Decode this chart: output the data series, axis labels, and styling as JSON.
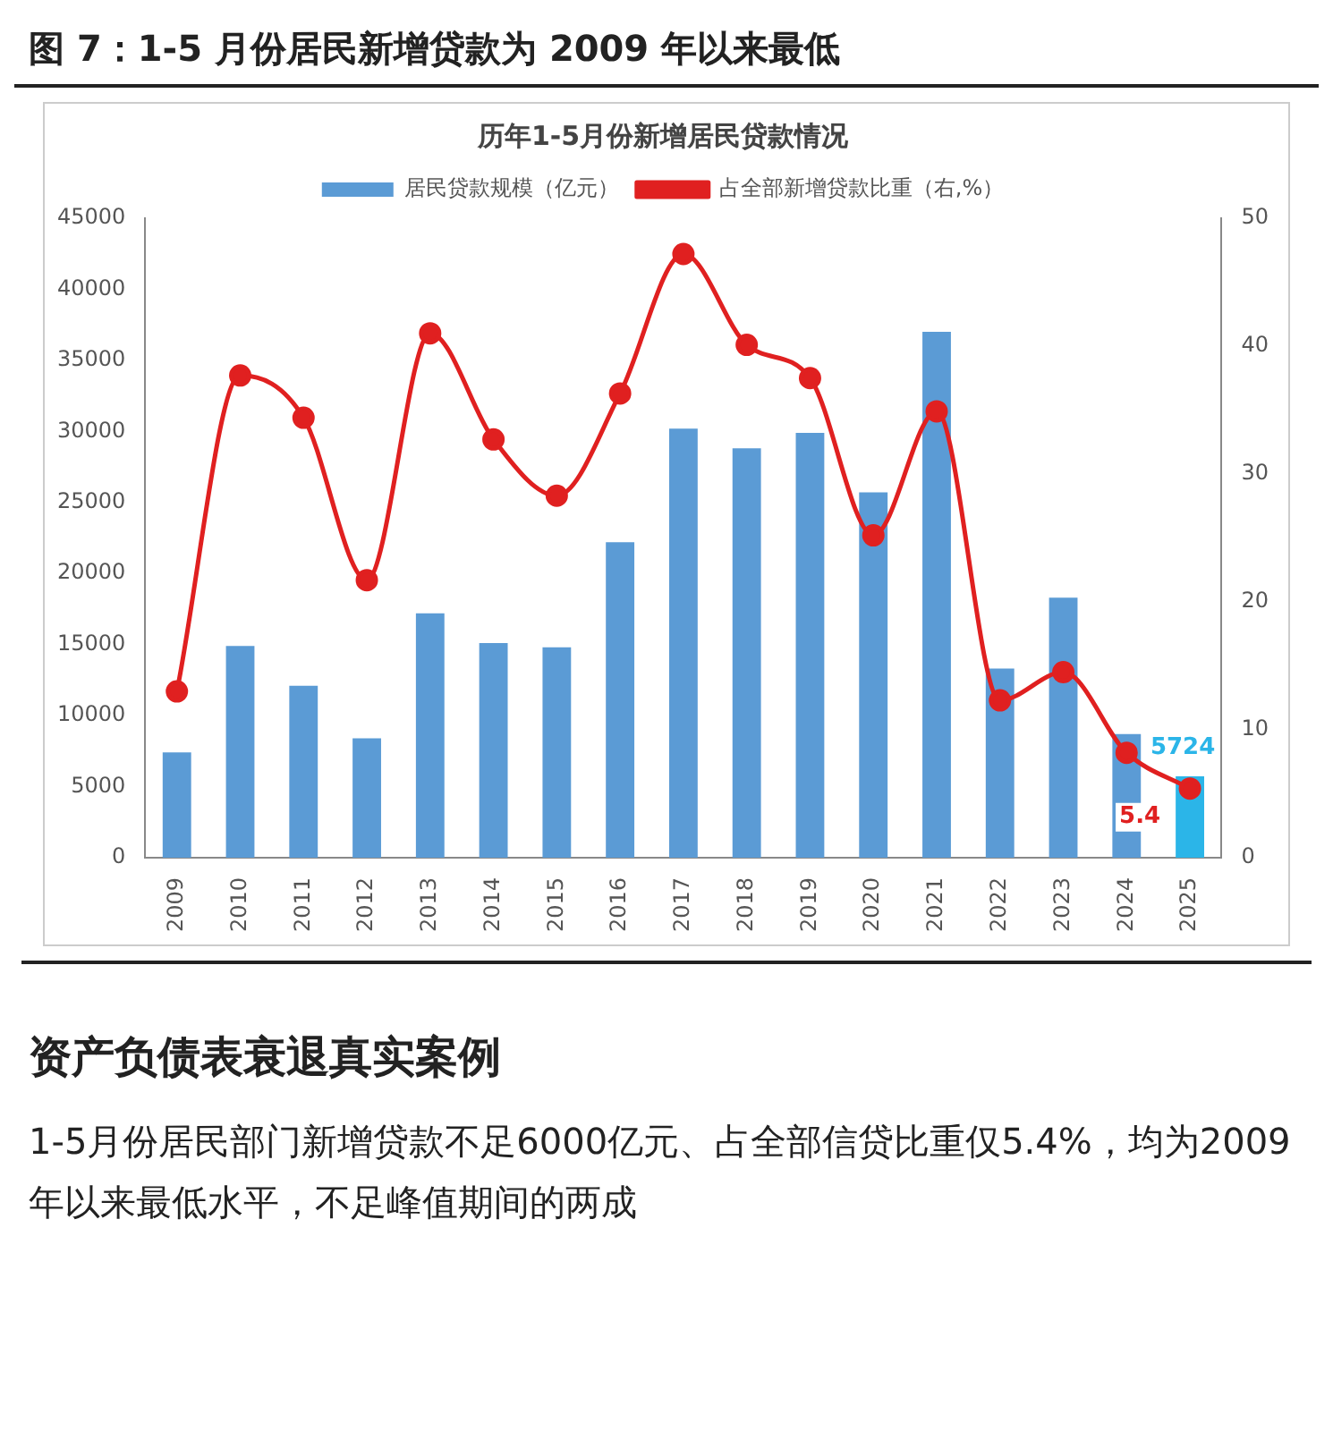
{
  "chart_data": {
    "type": "bar",
    "title": "图 7：1-5 月份居民新增贷款为 2009 年以来最低",
    "subtitle": "历年1-5月份新增居民贷款情况",
    "categories": [
      "2009",
      "2010",
      "2011",
      "2012",
      "2013",
      "2014",
      "2015",
      "2016",
      "2017",
      "2018",
      "2019",
      "2020",
      "2021",
      "2022",
      "2023",
      "2024",
      "2025"
    ],
    "series": [
      {
        "name": "居民贷款规模（亿元）",
        "color": "#5b9bd5",
        "colors": [
          "#5b9bd5",
          "#5b9bd5",
          "#5b9bd5",
          "#5b9bd5",
          "#5b9bd5",
          "#5b9bd5",
          "#5b9bd5",
          "#5b9bd5",
          "#5b9bd5",
          "#5b9bd5",
          "#5b9bd5",
          "#5b9bd5",
          "#5b9bd5",
          "#5b9bd5",
          "#5b9bd5",
          "#5b9bd5",
          "#2bb5e8"
        ],
        "values": [
          7400,
          14900,
          12100,
          8400,
          17200,
          15100,
          14800,
          22200,
          30200,
          28800,
          29900,
          25700,
          37000,
          13300,
          18300,
          8700,
          5724
        ],
        "value_labels": [
          null,
          null,
          null,
          null,
          null,
          null,
          null,
          null,
          null,
          null,
          null,
          null,
          null,
          null,
          null,
          null,
          "5724"
        ]
      },
      {
        "name": "占全部新增贷款比重（右,%）",
        "type": "line",
        "axis": "y2",
        "color": "#e02020",
        "marker": "circle",
        "values": [
          13,
          37.7,
          34.4,
          21.7,
          41,
          32.7,
          28.3,
          36.3,
          47.2,
          40.1,
          37.5,
          25.2,
          34.9,
          12.3,
          14.5,
          8.2,
          5.4
        ],
        "value_labels": [
          null,
          null,
          null,
          null,
          null,
          null,
          null,
          null,
          null,
          null,
          null,
          null,
          null,
          null,
          null,
          null,
          "5.4"
        ]
      }
    ],
    "ylim": [
      0,
      45000
    ],
    "yticks": [
      0,
      5000,
      10000,
      15000,
      20000,
      25000,
      30000,
      35000,
      40000,
      45000
    ],
    "y2lim": [
      0,
      50
    ],
    "y2ticks": [
      0,
      10,
      20,
      30,
      40,
      50
    ],
    "grid": false,
    "legend": "top",
    "annotations": [
      "资产负债表衰退真实案例",
      "1-5月份居民部门新增贷款不足6000亿元、占全部信贷比重仅5.4%，均为2009年以来最低水平，不足峰值期间的两成"
    ]
  }
}
